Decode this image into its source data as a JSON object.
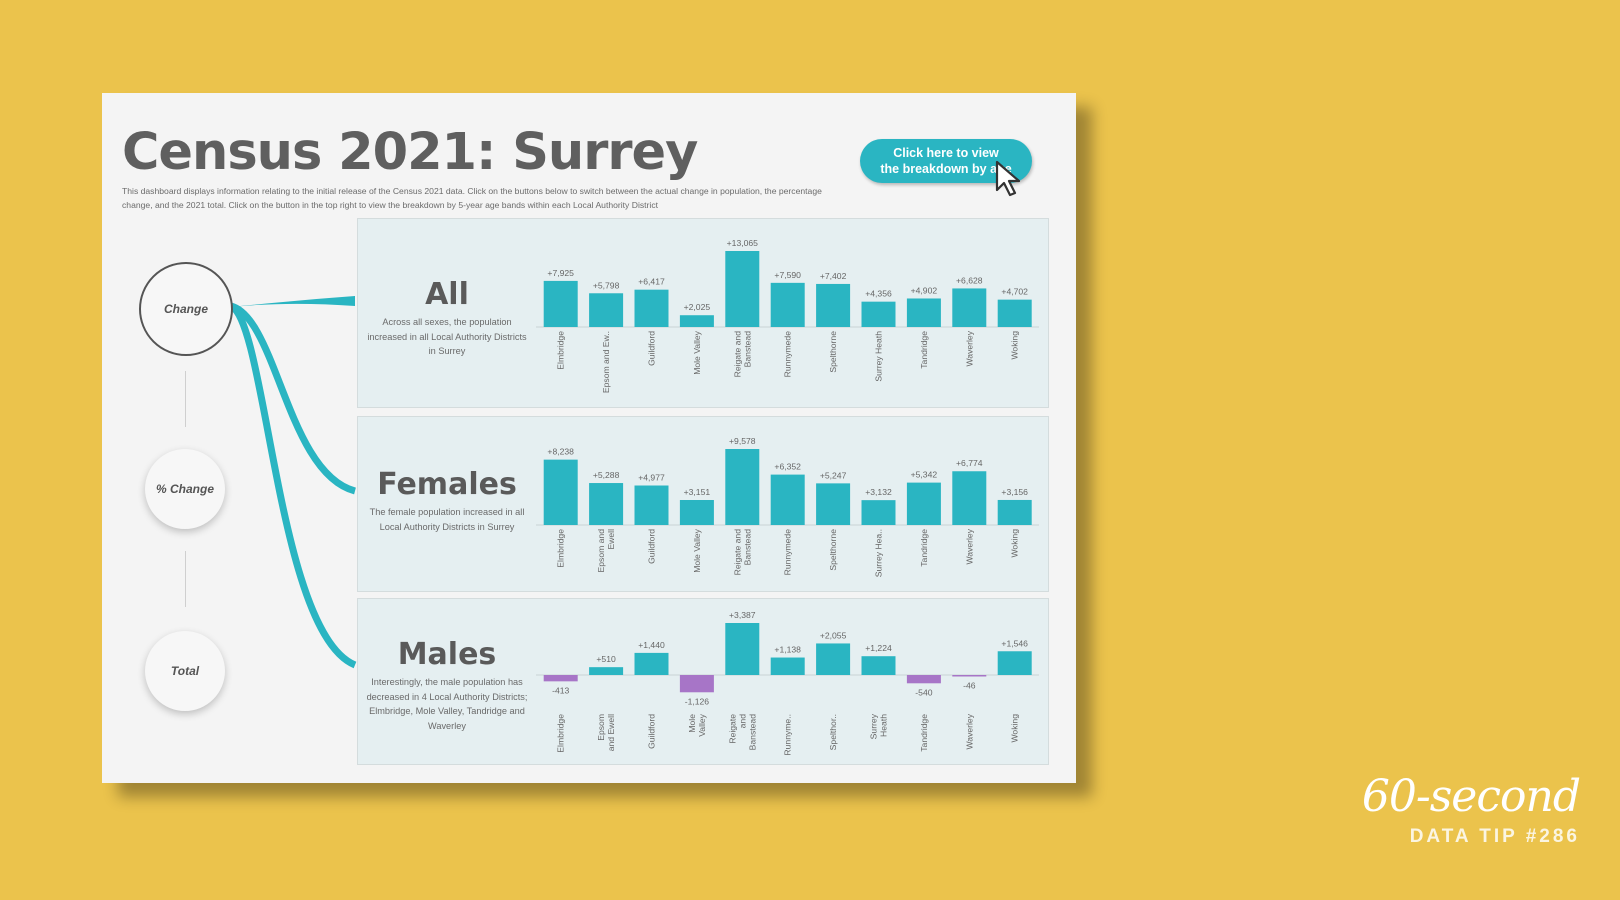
{
  "dashboard": {
    "title": "Census 2021: Surrey",
    "description": "This dashboard displays information relating to the initial release of the Census 2021 data. Click on the buttons below to switch between the actual change in population, the percentage change, and the 2021 total. Click on the button in the top right to view the breakdown by 5-year age bands within each Local Authority District",
    "cta_label": "Click here to view\nthe breakdown by age"
  },
  "nav": {
    "change": "Change",
    "pct_change": "% Change",
    "total": "Total",
    "active": "change"
  },
  "colors": {
    "positive": "#2ab5c2",
    "negative": "#a775c7",
    "accent": "#2ab5c2",
    "background": "#ebc34c"
  },
  "panels": {
    "all": {
      "title": "All",
      "description": "Across all sexes, the population increased in all Local Authority Districts in Surrey"
    },
    "females": {
      "title": "Females",
      "description": "The female population increased in all Local Authority Districts in Surrey"
    },
    "males": {
      "title": "Males",
      "description": "Interestingly, the male population has decreased in 4 Local Authority Districts; Elmbridge, Mole Valley, Tandridge and Waverley"
    }
  },
  "chart_data": [
    {
      "type": "bar",
      "name": "All",
      "categories": [
        "Elmbridge",
        "Epsom and Ew..",
        "Guildford",
        "Mole Valley",
        "Reigate and\nBanstead",
        "Runnymede",
        "Spelthorne",
        "Surrey Heath",
        "Tandridge",
        "Waverley",
        "Woking"
      ],
      "values": [
        7925,
        5798,
        6417,
        2025,
        13065,
        7590,
        7402,
        4356,
        4902,
        6628,
        4702
      ],
      "labels": [
        "+7,925",
        "+5,798",
        "+6,417",
        "+2,025",
        "+13,065",
        "+7,590",
        "+7,402",
        "+4,356",
        "+4,902",
        "+6,628",
        "+4,702"
      ]
    },
    {
      "type": "bar",
      "name": "Females",
      "categories": [
        "Elmbridge",
        "Epsom and\nEwell",
        "Guildford",
        "Mole Valley",
        "Reigate and\nBanstead",
        "Runnymede",
        "Spelthorne",
        "Surrey Hea..",
        "Tandridge",
        "Waverley",
        "Woking"
      ],
      "values": [
        8238,
        5288,
        4977,
        3151,
        9578,
        6352,
        5247,
        3132,
        5342,
        6774,
        3156
      ],
      "labels": [
        "+8,238",
        "+5,288",
        "+4,977",
        "+3,151",
        "+9,578",
        "+6,352",
        "+5,247",
        "+3,132",
        "+5,342",
        "+6,774",
        "+3,156"
      ]
    },
    {
      "type": "bar",
      "name": "Males",
      "categories": [
        "Elmbridge",
        "Epsom\nand Ewell",
        "Guildford",
        "Mole\nValley",
        "Reigate\nand\nBanstead",
        "Runnyme..",
        "Spelthor..",
        "Surrey\nHeath",
        "Tandridge",
        "Waverley",
        "Woking"
      ],
      "values": [
        -413,
        510,
        1440,
        -1126,
        3387,
        1138,
        2055,
        1224,
        -540,
        -46,
        1546
      ],
      "labels": [
        "-413",
        "+510",
        "+1,440",
        "-1,126",
        "+3,387",
        "+1,138",
        "+2,055",
        "+1,224",
        "-540",
        "-46",
        "+1,546"
      ]
    }
  ],
  "brand": {
    "script": "60-second",
    "tip": "DATA TIP #286"
  }
}
